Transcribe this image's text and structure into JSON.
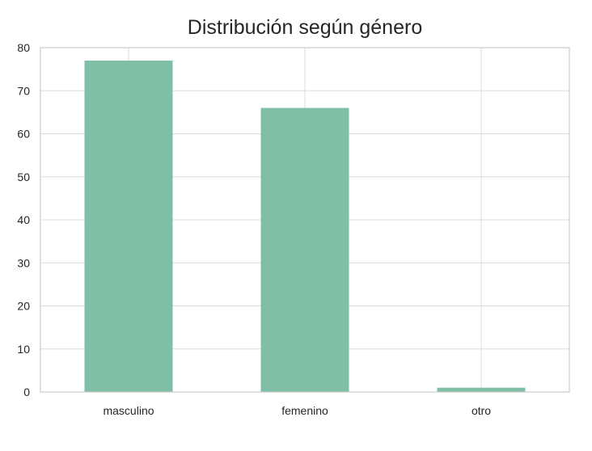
{
  "chart_data": {
    "type": "bar",
    "title": "Distribución según género",
    "categories": [
      "masculino",
      "femenino",
      "otro"
    ],
    "values": [
      77,
      66,
      1
    ],
    "xlabel": "",
    "ylabel": "",
    "ylim": [
      0,
      80
    ],
    "yticks": [
      0,
      10,
      20,
      30,
      40,
      50,
      60,
      70,
      80
    ],
    "grid": true,
    "bar_color": "#7fbfa5",
    "grid_color": "#dcdcdc",
    "frame_color": "#cccccc",
    "text_color": "#262626"
  }
}
